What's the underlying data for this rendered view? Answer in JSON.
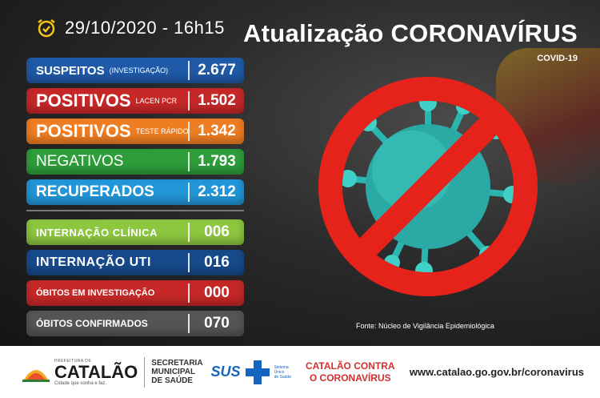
{
  "header": {
    "date_time": "29/10/2020 - 16h15",
    "title": "Atualização CORONAVÍRUS",
    "subtitle": "COVID-19"
  },
  "stats": [
    {
      "label": "SUSPEITOS",
      "note": "(INVESTIGAÇÃO)",
      "value": "2.677",
      "color": "#1f5aa8"
    },
    {
      "label": "POSITIVOS",
      "note": "LACEN PCR",
      "value": "1.502",
      "color": "#c62828"
    },
    {
      "label": "POSITIVOS",
      "note": "TESTE RÁPIDO",
      "value": "1.342",
      "color": "#ef7d22"
    },
    {
      "label": "NEGATIVOS",
      "note": "",
      "value": "1.793",
      "color": "#2e9e3a"
    },
    {
      "label": "RECUPERADOS",
      "note": "",
      "value": "2.312",
      "color": "#2196d8"
    }
  ],
  "hospital": [
    {
      "label": "INTERNAÇÃO CLÍNICA",
      "value": "006",
      "color": "#8dc63f"
    },
    {
      "label": "INTERNAÇÃO UTI",
      "value": "016",
      "color": "#164a8a"
    },
    {
      "label": "ÓBITOS EM INVESTIGAÇÃO",
      "value": "000",
      "color": "#c62828"
    },
    {
      "label": "ÓBITOS CONFIRMADOS",
      "value": "070",
      "color": "#555555"
    }
  ],
  "source": "Fonte: Núcleo de Vigilância Epidemiológica",
  "footer": {
    "prefeitura": "PREFEITURA DE",
    "city": "CATALÃO",
    "tagline": "Cidade que sonha e faz.",
    "secretaria": [
      "SECRETARIA",
      "MUNICIPAL",
      "DE SAÚDE"
    ],
    "sus": "SUS",
    "sus_sub": [
      "Sistema",
      "Único",
      "de Saúde"
    ],
    "campaign": [
      "CATALÃO CONTRA",
      "O CORONAVÍRUS"
    ],
    "website": "www.catalao.go.gov.br/coronavirus"
  }
}
